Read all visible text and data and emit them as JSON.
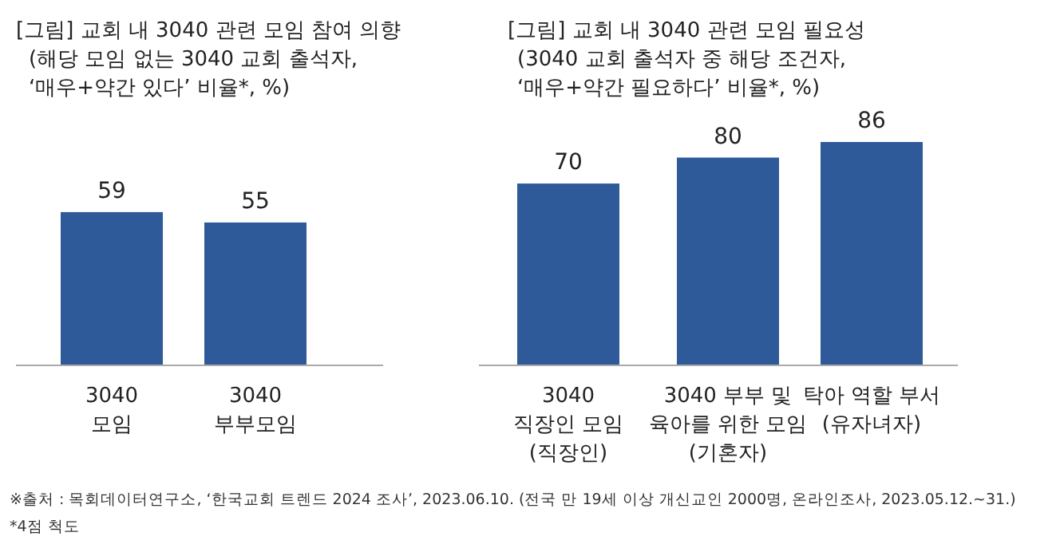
{
  "chart_data": [
    {
      "type": "bar",
      "title": "[그림] 교회 내 3040 관련 모임 참여 의향",
      "subtitle": "(해당 모임 없는 3040 교회 출석자,\n‘매우+약간 있다’ 비율*, %)",
      "categories": [
        "3040\n모임",
        "3040\n부부모임"
      ],
      "values": [
        59,
        55
      ],
      "color": "#2e5a9a",
      "data_labels": true,
      "annotations": [
        "※출처 : 목회데이터연구소, ‘한국교회 트렌드 2024 조사’, 2023.06.10. (전국 만 19세 이상 개신교인 2000명, 온라인조사, 2023.05.12.~31.)",
        "*4점 척도"
      ]
    },
    {
      "type": "bar",
      "title": "[그림] 교회 내 3040 관련 모임 필요성",
      "subtitle": "(3040 교회 출석자 중 해당 조건자,\n‘매우+약간 필요하다’ 비율*, %)",
      "categories": [
        "3040\n직장인 모임\n(직장인)",
        "3040 부부 및\n육아를 위한 모임\n(기혼자)",
        "탁아 역할 부서\n(유자녀자)"
      ],
      "values": [
        70,
        80,
        86
      ],
      "color": "#2e5a9a",
      "data_labels": true
    }
  ]
}
